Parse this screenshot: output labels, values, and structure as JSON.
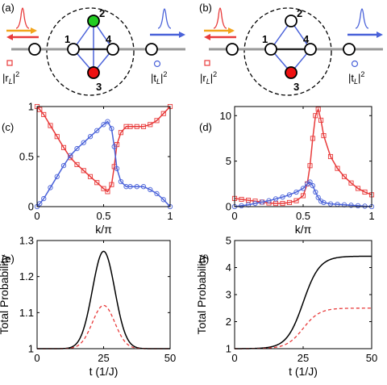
{
  "panel_labels": [
    "(a)",
    "(b)",
    "(c)",
    "(d)",
    "(e)",
    "(f)"
  ],
  "schematics": [
    {
      "panel": "(a)",
      "node_labels": [
        "1",
        "2",
        "3",
        "4"
      ],
      "node_colors": {
        "2": "#22cc22",
        "3": "#ee1111"
      },
      "r_label": "|r",
      "t_label": "|t",
      "sub": "L",
      "sup": "2"
    },
    {
      "panel": "(b)",
      "node_labels": [
        "1",
        "2",
        "3",
        "4"
      ],
      "node_colors": {
        "2": "#22cc22",
        "3": "#ee1111"
      },
      "r_label": "|r",
      "t_label": "|t",
      "sub": "L",
      "sup": "2"
    }
  ],
  "colors": {
    "blue": "#4a62d9",
    "red": "#e83a3a",
    "orange": "#f2a51d",
    "black": "#000000",
    "gray": "#999999",
    "green": "#22cc22"
  },
  "chart_data": [
    {
      "panel": "(c)",
      "type": "line",
      "xlabel": "k/π",
      "ylabel": "",
      "xlim": [
        0,
        1
      ],
      "ylim": [
        0,
        1
      ],
      "xticks": [
        0,
        0.5,
        1
      ],
      "yticks": [
        0,
        0.5,
        1
      ],
      "xticklabels": [
        "0",
        "0.5",
        "1"
      ],
      "yticklabels": [
        "0",
        "0.5",
        "1"
      ],
      "series": [
        {
          "color": "#e83a3a",
          "marker": "square",
          "style": "solid",
          "x": [
            0,
            0.02,
            0.05,
            0.1,
            0.15,
            0.2,
            0.25,
            0.3,
            0.35,
            0.4,
            0.45,
            0.5,
            0.53,
            0.56,
            0.58,
            0.6,
            0.63,
            0.67,
            0.7,
            0.75,
            0.8,
            0.85,
            0.9,
            0.95,
            1.0
          ],
          "y": [
            1.0,
            0.97,
            0.92,
            0.81,
            0.7,
            0.59,
            0.49,
            0.42,
            0.36,
            0.3,
            0.24,
            0.18,
            0.15,
            0.22,
            0.4,
            0.62,
            0.74,
            0.8,
            0.8,
            0.8,
            0.8,
            0.82,
            0.86,
            0.93,
            1.0
          ]
        },
        {
          "color": "#4a62d9",
          "marker": "circle",
          "style": "solid",
          "x": [
            0,
            0.02,
            0.05,
            0.1,
            0.15,
            0.2,
            0.25,
            0.3,
            0.35,
            0.4,
            0.45,
            0.5,
            0.53,
            0.56,
            0.58,
            0.6,
            0.63,
            0.67,
            0.7,
            0.75,
            0.8,
            0.85,
            0.9,
            0.95,
            1.0
          ],
          "y": [
            0.0,
            0.03,
            0.08,
            0.19,
            0.3,
            0.41,
            0.51,
            0.58,
            0.64,
            0.7,
            0.76,
            0.82,
            0.85,
            0.78,
            0.6,
            0.38,
            0.25,
            0.2,
            0.2,
            0.2,
            0.2,
            0.17,
            0.13,
            0.07,
            0.0
          ]
        }
      ]
    },
    {
      "panel": "(d)",
      "type": "line",
      "xlabel": "k/π",
      "ylabel": "",
      "xlim": [
        0,
        1
      ],
      "ylim": [
        0,
        11
      ],
      "xticks": [
        0,
        0.5,
        1
      ],
      "yticks": [
        0,
        5,
        10
      ],
      "xticklabels": [
        "0",
        "0.5",
        "1"
      ],
      "yticklabels": [
        "0",
        "5",
        "10"
      ],
      "series": [
        {
          "color": "#e83a3a",
          "marker": "square",
          "style": "solid",
          "x": [
            0,
            0.05,
            0.1,
            0.15,
            0.2,
            0.25,
            0.3,
            0.35,
            0.4,
            0.45,
            0.5,
            0.53,
            0.55,
            0.57,
            0.59,
            0.61,
            0.63,
            0.65,
            0.7,
            0.75,
            0.8,
            0.85,
            0.9,
            0.95,
            1.0
          ],
          "y": [
            0.9,
            0.8,
            0.7,
            0.6,
            0.5,
            0.4,
            0.35,
            0.35,
            0.45,
            0.65,
            1.2,
            2.5,
            4.5,
            7.5,
            10.0,
            10.7,
            9.5,
            7.8,
            5.5,
            4.2,
            3.3,
            2.6,
            2.0,
            1.6,
            1.3
          ]
        },
        {
          "color": "#4a62d9",
          "marker": "circle",
          "style": "solid",
          "x": [
            0,
            0.05,
            0.1,
            0.15,
            0.2,
            0.25,
            0.3,
            0.35,
            0.4,
            0.45,
            0.5,
            0.53,
            0.55,
            0.57,
            0.59,
            0.61,
            0.63,
            0.65,
            0.7,
            0.75,
            0.8,
            0.85,
            0.9,
            0.95,
            1.0
          ],
          "y": [
            0.0,
            0.1,
            0.2,
            0.35,
            0.5,
            0.65,
            0.85,
            1.05,
            1.3,
            1.6,
            2.0,
            2.5,
            2.7,
            2.3,
            1.6,
            1.0,
            0.6,
            0.45,
            0.3,
            0.25,
            0.2,
            0.15,
            0.1,
            0.05,
            0.0
          ]
        }
      ]
    },
    {
      "panel": "(e)",
      "type": "line",
      "xlabel": "t (1/J)",
      "ylabel": "Total Probability",
      "xlim": [
        0,
        50
      ],
      "ylim": [
        1,
        1.3
      ],
      "xticks": [
        0,
        25,
        50
      ],
      "yticks": [
        1,
        1.1,
        1.2,
        1.3
      ],
      "xticklabels": [
        "0",
        "25",
        "50"
      ],
      "yticklabels": [
        "1",
        "1.1",
        "1.2",
        "1.3"
      ],
      "series": [
        {
          "color": "#000000",
          "style": "solid",
          "shape": "gaussian",
          "center": 25,
          "width": 4.2,
          "base": 1.0,
          "peak": 1.27
        },
        {
          "color": "#e83a3a",
          "style": "dashed",
          "shape": "gaussian",
          "center": 25,
          "width": 4.2,
          "base": 1.0,
          "peak": 1.12
        }
      ]
    },
    {
      "panel": "(f)",
      "type": "line",
      "xlabel": "t (1/J)",
      "ylabel": "Total Probability",
      "xlim": [
        0,
        50
      ],
      "ylim": [
        1,
        5
      ],
      "xticks": [
        0,
        25,
        50
      ],
      "yticks": [
        1,
        2,
        3,
        4,
        5
      ],
      "xticklabels": [
        "0",
        "25",
        "50"
      ],
      "yticklabels": [
        "1",
        "2",
        "3",
        "4",
        "5"
      ],
      "series": [
        {
          "color": "#000000",
          "style": "solid",
          "shape": "sigmoid",
          "center": 25,
          "width": 3.0,
          "base": 1.0,
          "final": 4.42
        },
        {
          "color": "#e83a3a",
          "style": "dashed",
          "shape": "sigmoid",
          "center": 25,
          "width": 3.0,
          "base": 1.0,
          "final": 2.5
        }
      ]
    }
  ]
}
